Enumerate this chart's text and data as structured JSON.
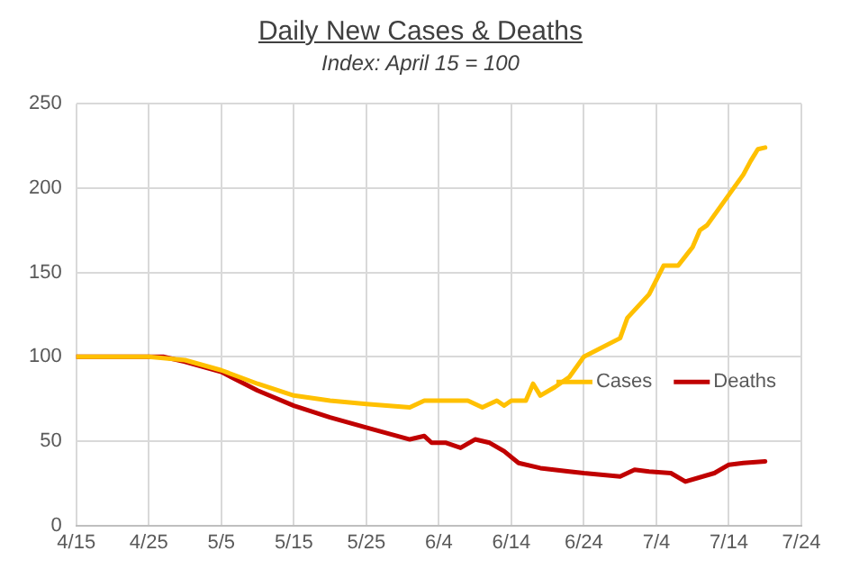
{
  "chart_data": {
    "type": "line",
    "title": "Daily New Cases & Deaths",
    "subtitle": "Index: April 15 = 100",
    "series": [
      {
        "name": "Cases",
        "color": "#ffc000",
        "x": [
          "--04-15",
          "--04-25",
          "--04-30",
          "--05-05",
          "--05-10",
          "--05-15",
          "--05-20",
          "--05-25",
          "--05-31",
          "--06-02",
          "--06-08",
          "--06-10",
          "--06-12",
          "--06-13",
          "--06-14",
          "--06-16",
          "--06-17",
          "--06-18",
          "--06-20",
          "--06-22",
          "--06-24",
          "--06-29",
          "--06-30",
          "--07-03",
          "--07-05",
          "--07-07",
          "--07-09",
          "--07-10",
          "--07-11",
          "--07-14",
          "--07-16",
          "--07-17",
          "--07-18",
          "--07-19"
        ],
        "values": [
          100,
          100,
          98,
          92,
          84,
          77,
          74,
          72,
          70,
          74,
          74,
          70,
          74,
          71,
          74,
          74,
          84,
          77,
          82,
          88,
          100,
          111,
          123,
          137,
          154,
          154,
          165,
          175,
          178,
          196,
          208,
          216,
          223,
          224
        ]
      },
      {
        "name": "Deaths",
        "color": "#c00000",
        "x": [
          "--04-15",
          "--04-27",
          "--04-30",
          "--05-05",
          "--05-10",
          "--05-15",
          "--05-20",
          "--05-25",
          "--05-31",
          "--06-02",
          "--06-03",
          "--06-05",
          "--06-07",
          "--06-09",
          "--06-11",
          "--06-13",
          "--06-15",
          "--06-18",
          "--06-22",
          "--06-24",
          "--06-29",
          "--07-01",
          "--07-03",
          "--07-06",
          "--07-08",
          "--07-12",
          "--07-14",
          "--07-16",
          "--07-19"
        ],
        "values": [
          100,
          100,
          97,
          91,
          80,
          71,
          64,
          58,
          51,
          53,
          49,
          49,
          46,
          51,
          49,
          44,
          37,
          34,
          32,
          31,
          29,
          33,
          32,
          31,
          26,
          31,
          36,
          37,
          38
        ]
      }
    ],
    "xlim": [
      "--04-15",
      "--07-24"
    ],
    "xticks": [
      {
        "value": "--04-15",
        "label": "4/15"
      },
      {
        "value": "--04-25",
        "label": "4/25"
      },
      {
        "value": "--05-05",
        "label": "5/5"
      },
      {
        "value": "--05-15",
        "label": "5/15"
      },
      {
        "value": "--05-25",
        "label": "5/25"
      },
      {
        "value": "--06-04",
        "label": "6/4"
      },
      {
        "value": "--06-14",
        "label": "6/14"
      },
      {
        "value": "--06-24",
        "label": "6/24"
      },
      {
        "value": "--07-04",
        "label": "7/4"
      },
      {
        "value": "--07-14",
        "label": "7/14"
      },
      {
        "value": "--07-24",
        "label": "7/24"
      }
    ],
    "ylim": [
      0,
      250
    ],
    "yticks": [
      0,
      50,
      100,
      150,
      200,
      250
    ],
    "grid": true,
    "legend": "right",
    "marker": "none",
    "line_style": "solid"
  }
}
